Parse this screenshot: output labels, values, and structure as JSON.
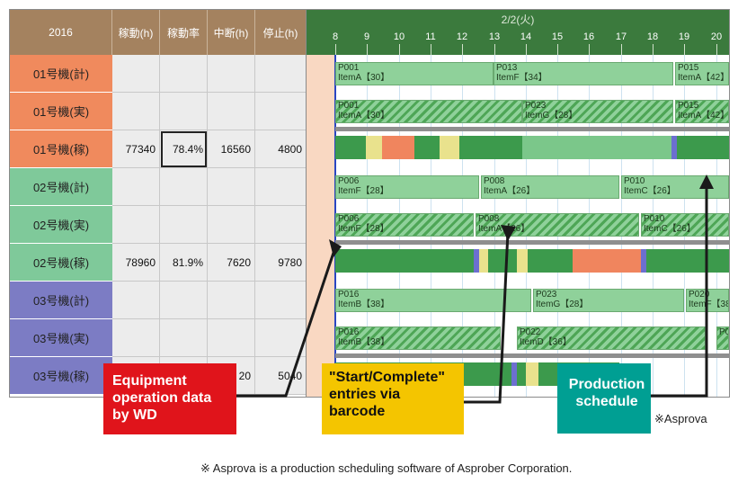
{
  "table": {
    "headers": [
      "2016",
      "稼動(h)",
      "稼動率",
      "中断(h)",
      "停止(h)"
    ],
    "rows": [
      {
        "label": "01号機(計)",
        "color": "#f08a5d",
        "values": [
          "",
          "",
          "",
          ""
        ]
      },
      {
        "label": "01号機(実)",
        "color": "#f08a5d",
        "values": [
          "",
          "",
          "",
          ""
        ]
      },
      {
        "label": "01号機(稼)",
        "color": "#f08a5d",
        "values": [
          "77340",
          "78.4%",
          "16560",
          "4800"
        ]
      },
      {
        "label": "02号機(計)",
        "color": "#7fc99a",
        "values": [
          "",
          "",
          "",
          ""
        ]
      },
      {
        "label": "02号機(実)",
        "color": "#7fc99a",
        "values": [
          "",
          "",
          "",
          ""
        ]
      },
      {
        "label": "02号機(稼)",
        "color": "#7fc99a",
        "values": [
          "78960",
          "81.9%",
          "7620",
          "9780"
        ]
      },
      {
        "label": "03号機(計)",
        "color": "#7c7cc4",
        "values": [
          "",
          "",
          "",
          ""
        ]
      },
      {
        "label": "03号機(実)",
        "color": "#7c7cc4",
        "values": [
          "",
          "",
          "",
          ""
        ]
      },
      {
        "label": "03号機(稼)",
        "color": "#7c7cc4",
        "values": [
          "",
          "",
          "20",
          "5040"
        ]
      }
    ]
  },
  "gantt": {
    "date": "2/2(火)",
    "hours": [
      "8",
      "9",
      "10",
      "11",
      "12",
      "13",
      "14",
      "15",
      "16",
      "17",
      "18",
      "19",
      "20"
    ],
    "planned": [
      [
        "P001\nItemA【30】",
        "P013\nItemF【34】",
        "P015\nItemA【42】"
      ],
      [
        "P006\nItemF【28】",
        "P008\nItemA【26】",
        "P010\nItemC【26】"
      ],
      [
        "P016\nItemB【38】",
        "P023\nItemG【28】",
        "P020\nItemF【38】"
      ]
    ],
    "actual": [
      [
        "P001\nItemA【30】",
        "P023\nItemG【28】",
        "P015\nItemA【42】"
      ],
      [
        "P006\nItemF【28】",
        "P008\nItemA【26】",
        "P010\nItemC【26】"
      ],
      [
        "P016\nItemB【38】",
        "P022\nItemD【36】",
        "P0"
      ]
    ]
  },
  "callouts": {
    "equipment": "Equipment\noperation data\nby WD",
    "barcode": "\"Start/Complete\"\nentries via\nbarcode",
    "schedule": "Production\nschedule"
  },
  "asprova_mark": "※Asprova",
  "footnote": "※ Asprova is a production scheduling software of Asprober Corporation.",
  "colors": {
    "equipment_bg": "#e0141b",
    "barcode_bg": "#f4c500",
    "schedule_bg": "#009f93"
  }
}
